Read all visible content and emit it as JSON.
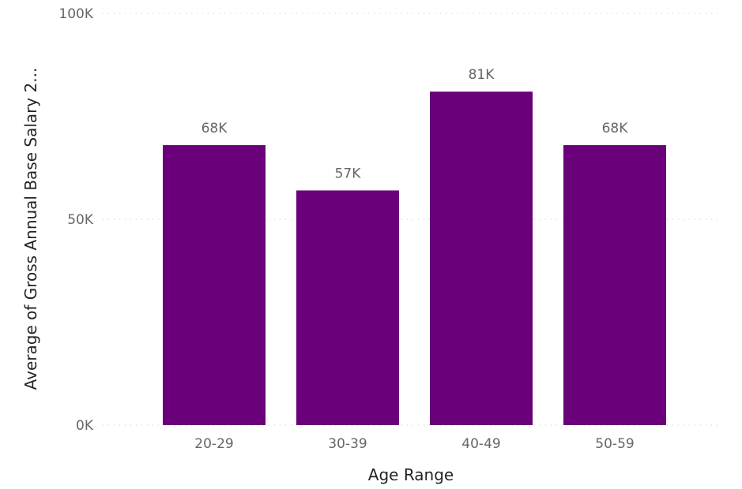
{
  "chart_data": {
    "type": "bar",
    "categories": [
      "20-29",
      "30-39",
      "40-49",
      "50-59"
    ],
    "values": [
      68000,
      57000,
      81000,
      68000
    ],
    "data_labels": [
      "68K",
      "57K",
      "81K",
      "68K"
    ],
    "xlabel": "Age Range",
    "ylabel": "Average of Gross Annual Base Salary 2...",
    "ylim": [
      0,
      100000
    ],
    "yticks": [
      {
        "value": 0,
        "label": "0K"
      },
      {
        "value": 50000,
        "label": "50K"
      },
      {
        "value": 100000,
        "label": "100K"
      }
    ],
    "grid": true,
    "bar_color": "#6a007a"
  }
}
